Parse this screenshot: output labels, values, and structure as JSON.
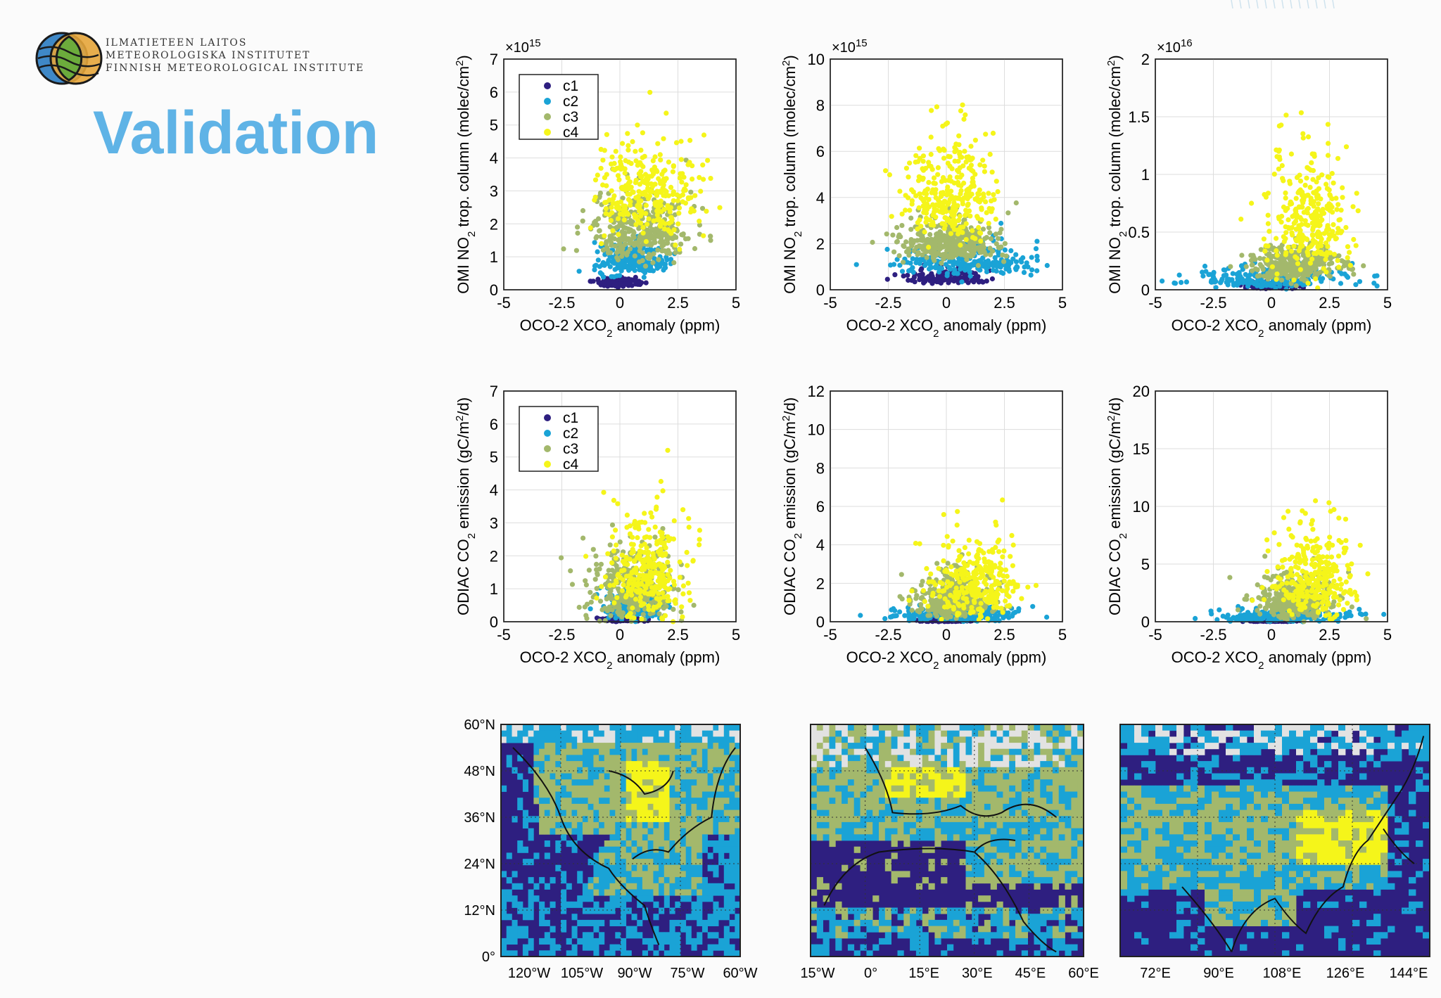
{
  "header": {
    "logo_lines": [
      "ILMATIETEEN LAITOS",
      "METEOROLOGISKA INSTITUTET",
      "FINNISH METEOROLOGICAL INSTITUTE"
    ],
    "title": "Validation"
  },
  "colors": {
    "c1": "#2e1f80",
    "c2": "#1aa3d6",
    "c3": "#a3b86c",
    "c4": "#f5f51a",
    "title": "#5fb3e6",
    "map_bg": "#e2e2e2"
  },
  "legend": {
    "labels": [
      "c1",
      "c2",
      "c3",
      "c4"
    ]
  },
  "chart_data": [
    {
      "type": "scatter",
      "id": "p11",
      "title": "",
      "xlabel": "OCO-2 XCO2 anomaly (ppm)",
      "ylabel": "OMI NO2 trop. column (molec/cm2)",
      "xlim": [
        -5,
        5
      ],
      "ylim": [
        0,
        7
      ],
      "exponent": "×10^15",
      "xticks": [
        "-5",
        "-2.5",
        "0",
        "2.5",
        "5"
      ],
      "yticks": [
        "0",
        "1",
        "2",
        "3",
        "4",
        "5",
        "6",
        "7"
      ],
      "legend": [
        "c1",
        "c2",
        "c3",
        "c4"
      ],
      "legend_position": "top-left",
      "series": [
        {
          "name": "c1",
          "center": [
            0,
            0.2
          ],
          "spread": [
            0.7,
            0.1
          ]
        },
        {
          "name": "c2",
          "center": [
            0.5,
            0.8
          ],
          "spread": [
            1.1,
            0.35
          ]
        },
        {
          "name": "c3",
          "center": [
            0.8,
            1.6
          ],
          "spread": [
            1.9,
            0.7
          ]
        },
        {
          "name": "c4",
          "center": [
            1.2,
            2.7
          ],
          "spread": [
            1.9,
            1.0
          ]
        }
      ]
    },
    {
      "type": "scatter",
      "id": "p12",
      "title": "",
      "xlabel": "OCO-2 XCO2 anomaly (ppm)",
      "ylabel": "OMI NO2 trop. column (molec/cm2)",
      "xlim": [
        -5,
        5
      ],
      "ylim": [
        0,
        10
      ],
      "exponent": "×10^15",
      "xticks": [
        "-5",
        "-2.5",
        "0",
        "2.5",
        "5"
      ],
      "yticks": [
        "0",
        "2",
        "4",
        "6",
        "8",
        "10"
      ],
      "legend": [],
      "series": [
        {
          "name": "c1",
          "center": [
            0,
            0.5
          ],
          "spread": [
            1.4,
            0.25
          ]
        },
        {
          "name": "c2",
          "center": [
            1.0,
            1.1
          ],
          "spread": [
            2.5,
            0.5
          ]
        },
        {
          "name": "c3",
          "center": [
            0.2,
            1.9
          ],
          "spread": [
            1.8,
            0.6
          ]
        },
        {
          "name": "c4",
          "center": [
            0.2,
            3.8
          ],
          "spread": [
            1.6,
            1.5
          ]
        }
      ]
    },
    {
      "type": "scatter",
      "id": "p13",
      "title": "",
      "xlabel": "OCO-2 XCO2 anomaly (ppm)",
      "ylabel": "OMI NO2 trop. column (molec/cm2)",
      "xlim": [
        -5,
        5
      ],
      "ylim": [
        0,
        2
      ],
      "exponent": "×10^16",
      "xticks": [
        "-5",
        "-2.5",
        "0",
        "2.5",
        "5"
      ],
      "yticks": [
        "0",
        "0.5",
        "1",
        "1.5",
        "2"
      ],
      "legend": [],
      "series": [
        {
          "name": "c1",
          "center": [
            0,
            0.03
          ],
          "spread": [
            0.8,
            0.02
          ]
        },
        {
          "name": "c2",
          "center": [
            0,
            0.08
          ],
          "spread": [
            2.6,
            0.05
          ]
        },
        {
          "name": "c3",
          "center": [
            1.0,
            0.2
          ],
          "spread": [
            1.6,
            0.1
          ]
        },
        {
          "name": "c4",
          "center": [
            1.6,
            0.5
          ],
          "spread": [
            1.5,
            0.35
          ]
        }
      ]
    },
    {
      "type": "scatter",
      "id": "p21",
      "title": "",
      "xlabel": "OCO-2 XCO2 anomaly (ppm)",
      "ylabel": "ODIAC CO2 emission (gC/m2/d)",
      "xlim": [
        -5,
        5
      ],
      "ylim": [
        0,
        7
      ],
      "xticks": [
        "-5",
        "-2.5",
        "0",
        "2.5",
        "5"
      ],
      "yticks": [
        "0",
        "1",
        "2",
        "3",
        "4",
        "5",
        "6",
        "7"
      ],
      "legend": [
        "c1",
        "c2",
        "c3",
        "c4"
      ],
      "legend_position": "top-left",
      "series": [
        {
          "name": "c1",
          "center": [
            0,
            0.05
          ],
          "spread": [
            0.7,
            0.05
          ]
        },
        {
          "name": "c2",
          "center": [
            0.6,
            0.4
          ],
          "spread": [
            1.0,
            0.35
          ]
        },
        {
          "name": "c3",
          "center": [
            0.6,
            0.8
          ],
          "spread": [
            1.6,
            0.7
          ]
        },
        {
          "name": "c4",
          "center": [
            1.2,
            1.3
          ],
          "spread": [
            1.4,
            1.1
          ]
        }
      ]
    },
    {
      "type": "scatter",
      "id": "p22",
      "title": "",
      "xlabel": "OCO-2 XCO2 anomaly (ppm)",
      "ylabel": "ODIAC CO2 emission (gC/m2/d)",
      "xlim": [
        -5,
        5
      ],
      "ylim": [
        0,
        12
      ],
      "xticks": [
        "-5",
        "-2.5",
        "0",
        "2.5",
        "5"
      ],
      "yticks": [
        "0",
        "2",
        "4",
        "6",
        "8",
        "10",
        "12"
      ],
      "legend": [],
      "series": [
        {
          "name": "c1",
          "center": [
            0,
            0.05
          ],
          "spread": [
            0.8,
            0.04
          ]
        },
        {
          "name": "c2",
          "center": [
            0.4,
            0.3
          ],
          "spread": [
            2.2,
            0.25
          ]
        },
        {
          "name": "c3",
          "center": [
            0.3,
            1.0
          ],
          "spread": [
            1.5,
            0.8
          ]
        },
        {
          "name": "c4",
          "center": [
            1.2,
            1.6
          ],
          "spread": [
            1.5,
            1.6
          ]
        }
      ]
    },
    {
      "type": "scatter",
      "id": "p23",
      "title": "",
      "xlabel": "OCO-2 XCO2 anomaly (ppm)",
      "ylabel": "ODIAC CO2 emission (gC/m2/d)",
      "xlim": [
        -5,
        5
      ],
      "ylim": [
        0,
        20
      ],
      "xticks": [
        "-5",
        "-2.5",
        "0",
        "2.5",
        "5"
      ],
      "yticks": [
        "0",
        "5",
        "10",
        "15",
        "20"
      ],
      "legend": [],
      "series": [
        {
          "name": "c1",
          "center": [
            0,
            0.05
          ],
          "spread": [
            0.8,
            0.04
          ]
        },
        {
          "name": "c2",
          "center": [
            0.5,
            0.4
          ],
          "spread": [
            2.4,
            0.4
          ]
        },
        {
          "name": "c3",
          "center": [
            1.0,
            1.6
          ],
          "spread": [
            1.4,
            1.3
          ]
        },
        {
          "name": "c4",
          "center": [
            1.8,
            3.2
          ],
          "spread": [
            1.4,
            2.6
          ]
        }
      ]
    },
    {
      "type": "heatmap",
      "id": "m1",
      "title": "",
      "region": "North America",
      "lat_range": [
        0,
        60
      ],
      "lon_range": [
        -130,
        -60
      ],
      "xticks": [
        "120°W",
        "105°W",
        "90°W",
        "75°W",
        "60°W"
      ],
      "yticks": [
        "0°",
        "12°N",
        "24°N",
        "36°N",
        "48°N",
        "60°N"
      ],
      "categories": [
        "c1",
        "c2",
        "c3",
        "c4"
      ]
    },
    {
      "type": "heatmap",
      "id": "m2",
      "title": "",
      "region": "Europe, Africa and Middle East",
      "lat_range": [
        0,
        60
      ],
      "lon_range": [
        -20,
        60
      ],
      "xticks": [
        "15°W",
        "0°",
        "15°E",
        "30°E",
        "45°E",
        "60°E"
      ],
      "yticks": [],
      "categories": [
        "c1",
        "c2",
        "c3",
        "c4"
      ]
    },
    {
      "type": "heatmap",
      "id": "m3",
      "title": "",
      "region": "Asia",
      "lat_range": [
        0,
        60
      ],
      "lon_range": [
        60,
        150
      ],
      "xticks": [
        "72°E",
        "90°E",
        "108°E",
        "126°E",
        "144°E"
      ],
      "yticks": [],
      "categories": [
        "c1",
        "c2",
        "c3",
        "c4"
      ]
    }
  ]
}
